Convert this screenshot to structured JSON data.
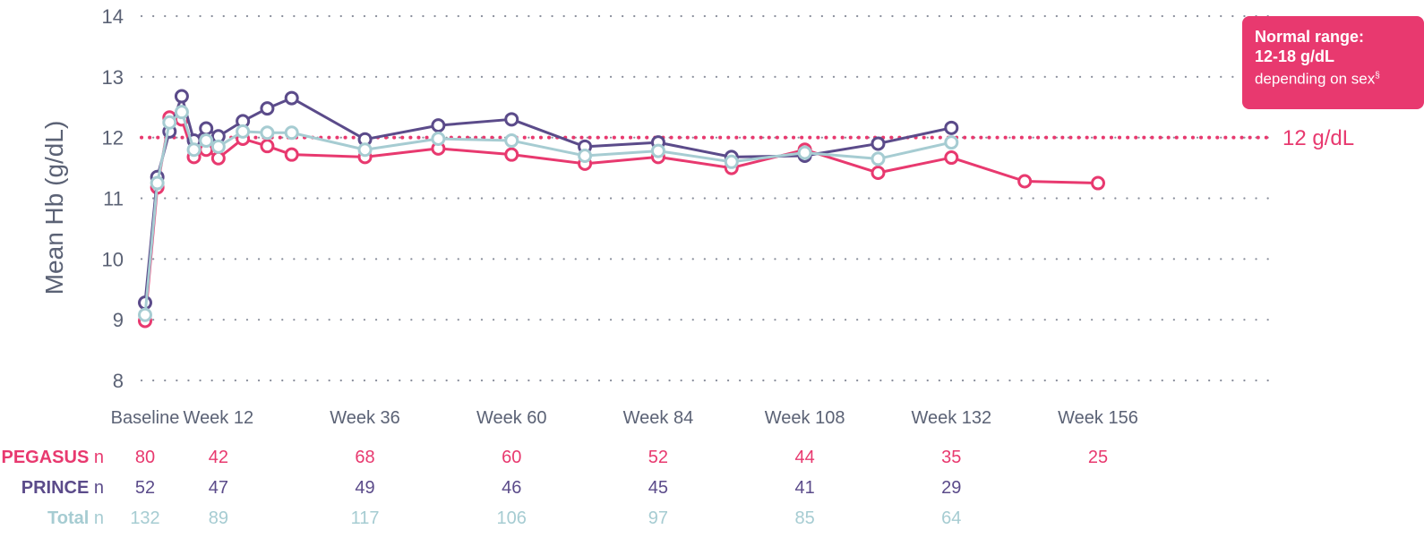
{
  "chart_data": {
    "type": "line",
    "ylabel": "Mean Hb (g/dL)",
    "xlabel": "",
    "ylim": [
      8,
      14
    ],
    "y_ticks": [
      8,
      9,
      10,
      11,
      12,
      13,
      14
    ],
    "x_tick_labels": [
      {
        "week": 0,
        "label": "Baseline"
      },
      {
        "week": 12,
        "label": "Week 12"
      },
      {
        "week": 36,
        "label": "Week 36"
      },
      {
        "week": 60,
        "label": "Week 60"
      },
      {
        "week": 84,
        "label": "Week 84"
      },
      {
        "week": 108,
        "label": "Week 108"
      },
      {
        "week": 132,
        "label": "Week 132"
      },
      {
        "week": 156,
        "label": "Week 156"
      }
    ],
    "grid": "horizontal dotted",
    "series": [
      {
        "name": "PEGASUS",
        "color": "#e8396f",
        "x": [
          0,
          2,
          4,
          6,
          8,
          10,
          12,
          16,
          20,
          24,
          36,
          48,
          60,
          72,
          84,
          96,
          108,
          120,
          132,
          144,
          156
        ],
        "y": [
          8.98,
          11.18,
          12.33,
          12.3,
          11.68,
          11.8,
          11.66,
          11.98,
          11.86,
          11.72,
          11.68,
          11.82,
          11.72,
          11.57,
          11.68,
          11.5,
          11.8,
          11.42,
          11.67,
          11.28,
          11.25
        ]
      },
      {
        "name": "PRINCE",
        "color": "#5b4b8a",
        "x": [
          0,
          2,
          4,
          6,
          8,
          10,
          12,
          16,
          20,
          24,
          36,
          48,
          60,
          72,
          84,
          96,
          108,
          120,
          132
        ],
        "y": [
          9.28,
          11.35,
          12.1,
          12.68,
          11.95,
          12.15,
          12.02,
          12.27,
          12.48,
          12.65,
          11.97,
          12.2,
          12.3,
          11.85,
          11.92,
          11.68,
          11.7,
          11.9,
          12.16
        ]
      },
      {
        "name": "Total",
        "color": "#a6ccd2",
        "x": [
          0,
          2,
          4,
          6,
          8,
          10,
          12,
          16,
          20,
          24,
          36,
          48,
          60,
          72,
          84,
          96,
          108,
          120,
          132
        ],
        "y": [
          9.08,
          11.25,
          12.25,
          12.42,
          11.8,
          11.95,
          11.85,
          12.1,
          12.08,
          12.08,
          11.8,
          11.98,
          11.95,
          11.7,
          11.78,
          11.6,
          11.75,
          11.65,
          11.92
        ]
      }
    ],
    "reference_line": {
      "y": 12,
      "label": "12 g/dL",
      "color": "#e8396f"
    },
    "callout": {
      "line1": "Normal range:",
      "line2": "12-18 g/dL",
      "line3": "depending on sex",
      "footnote_mark": "§",
      "color": "#e8396f"
    },
    "n_table": {
      "unit": "n",
      "weeks": [
        0,
        12,
        36,
        60,
        84,
        108,
        132,
        156
      ],
      "rows": [
        {
          "name": "PEGASUS",
          "color": "#e8396f",
          "values": [
            "80",
            "42",
            "68",
            "60",
            "52",
            "44",
            "35",
            "25"
          ]
        },
        {
          "name": "PRINCE",
          "color": "#5b4b8a",
          "values": [
            "52",
            "47",
            "49",
            "46",
            "45",
            "41",
            "29",
            ""
          ]
        },
        {
          "name": "Total",
          "color": "#a6ccd2",
          "values": [
            "132",
            "89",
            "117",
            "106",
            "97",
            "85",
            "64",
            ""
          ]
        }
      ]
    }
  }
}
